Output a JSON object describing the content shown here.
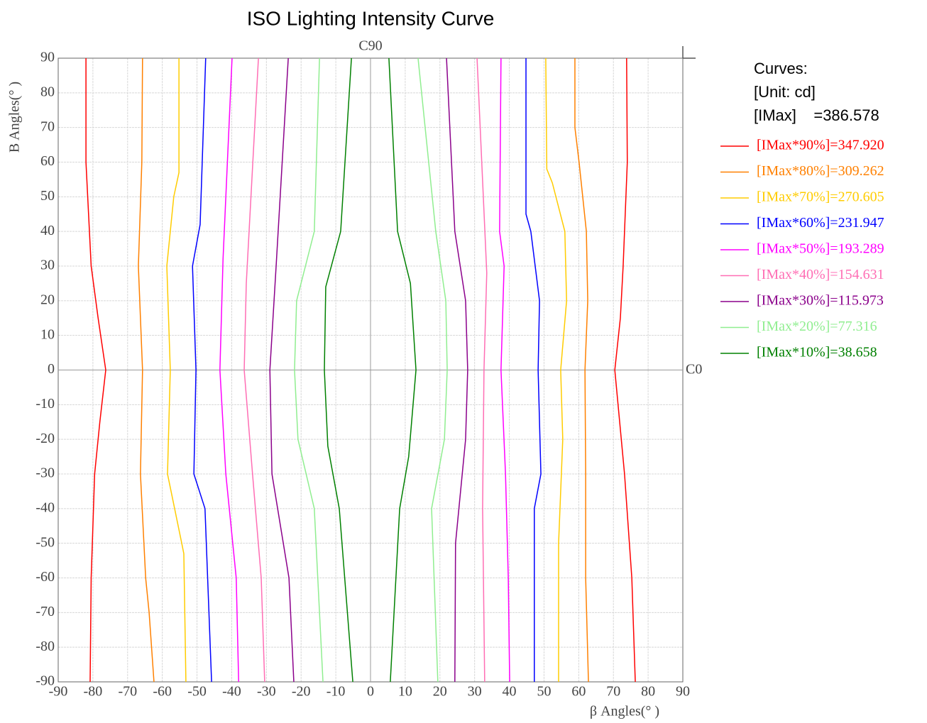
{
  "chart_data": {
    "type": "line",
    "title": "ISO Lighting Intensity Curve",
    "xlabel": "β Angles(° )",
    "ylabel": "B Angles(° )",
    "top_label": "C90",
    "right_label": "C0",
    "legend_title": "Curves:",
    "legend_unit": "[Unit: cd]",
    "legend_max": "[IMax]    =386.578",
    "xlim": [
      -90,
      90
    ],
    "ylim": [
      -90,
      90
    ],
    "xticks": [
      -90,
      -80,
      -70,
      -60,
      -50,
      -40,
      -30,
      -20,
      -10,
      0,
      10,
      20,
      30,
      40,
      50,
      60,
      70,
      80,
      90
    ],
    "yticks": [
      -90,
      -80,
      -70,
      -60,
      -50,
      -40,
      -30,
      -20,
      -10,
      0,
      10,
      20,
      30,
      40,
      50,
      60,
      70,
      80,
      90
    ],
    "grid": true,
    "series": [
      {
        "name": "[IMax*90%]=347.920",
        "color": "#ff0000",
        "x": [
          -82,
          -82,
          -80.5,
          -78.5,
          -76.3,
          -78,
          -79.5,
          -80.5,
          -80.8,
          null,
          73.8,
          74,
          72.8,
          72,
          70.4,
          71.8,
          73.2,
          75.3,
          76.3
        ],
        "y": [
          90,
          60,
          30,
          15,
          0,
          -15,
          -30,
          -60,
          -90,
          null,
          90,
          60,
          30,
          15,
          0,
          -15,
          -30,
          -60,
          -90
        ]
      },
      {
        "name": "[IMax*80%]=309.262",
        "color": "#ff8000",
        "x": [
          -65.7,
          -65.9,
          -66.9,
          -65.7,
          -66.3,
          -64.8,
          -63.8,
          -62.4,
          null,
          58.9,
          58.9,
          60.1,
          62.2,
          62.6,
          61.8,
          62,
          62,
          62.8
        ],
        "y": [
          90,
          60,
          30,
          0,
          -30,
          -60,
          -70,
          -90,
          null,
          90,
          70,
          60,
          40,
          20,
          0,
          -30,
          -60,
          -90
        ]
      },
      {
        "name": "[IMax*70%]=270.605",
        "color": "#ffcc00",
        "x": [
          -55.2,
          -55.2,
          -56.7,
          -58.7,
          -57.7,
          -58.5,
          -54.4,
          -53.8,
          -53.2,
          null,
          50.5,
          50.8,
          52.4,
          56,
          56.5,
          54.8,
          55.4,
          54.2,
          54.2
        ],
        "y": [
          90,
          57,
          50,
          30,
          0,
          -30,
          -50,
          -53,
          -90,
          null,
          90,
          58,
          54,
          40,
          20,
          0,
          -20,
          -50,
          -90
        ]
      },
      {
        "name": "[IMax*60%]=231.947",
        "color": "#0000ff",
        "x": [
          -47.5,
          -49.1,
          -51.3,
          -50.3,
          -50.9,
          -47.7,
          -45.8,
          null,
          44.8,
          44.8,
          46.2,
          48.7,
          48.3,
          49.1,
          47.2,
          47.2
        ],
        "y": [
          90,
          42,
          30,
          0,
          -30,
          -40,
          -90,
          null,
          90,
          45,
          40,
          20,
          0,
          -30,
          -40,
          -90
        ]
      },
      {
        "name": "[IMax*50%]=193.289",
        "color": "#ff00ff",
        "x": [
          -39.9,
          -42.5,
          -43.4,
          -41.7,
          -38.7,
          -38,
          null,
          37.6,
          37.2,
          38.5,
          37.6,
          38.9,
          39.7,
          40.1
        ],
        "y": [
          90,
          32,
          0,
          -30,
          -60,
          -90,
          null,
          90,
          40,
          30,
          0,
          -30,
          -60,
          -90
        ]
      },
      {
        "name": "[IMax*40%]=154.631",
        "color": "#ff6eb4",
        "x": [
          -32.3,
          -35.8,
          -36.4,
          -34,
          -31.5,
          -30.5,
          null,
          30.7,
          33.5,
          32.7,
          32.3,
          32.9
        ],
        "y": [
          90,
          25,
          0,
          -30,
          -60,
          -90,
          null,
          90,
          28,
          0,
          -40,
          -90
        ]
      },
      {
        "name": "[IMax*30%]=115.973",
        "color": "#8b008b",
        "x": [
          -23.7,
          -27.2,
          -29,
          -28.4,
          -23.5,
          -22.1,
          null,
          21.9,
          24.3,
          27.4,
          28,
          27.4,
          24.5,
          24.3
        ],
        "y": [
          90,
          30,
          0,
          -30,
          -60,
          -90,
          null,
          90,
          40,
          20,
          0,
          -20,
          -50,
          -90
        ]
      },
      {
        "name": "[IMax*20%]=77.316",
        "color": "#90ee90",
        "x": [
          -14.7,
          -16.2,
          -21.3,
          -21.9,
          -20.9,
          -16.2,
          -13.7,
          null,
          13.7,
          18.8,
          21.7,
          22.1,
          21.3,
          17.6,
          19.4
        ],
        "y": [
          90,
          40,
          20,
          0,
          -20,
          -40,
          -90,
          null,
          90,
          40,
          20,
          0,
          -20,
          -40,
          -90
        ]
      },
      {
        "name": "[IMax*10%]=38.658",
        "color": "#008000",
        "x": [
          -5.5,
          -8.6,
          -12.9,
          -13.3,
          -12.3,
          -9,
          -5.1,
          null,
          5.3,
          7.8,
          11.5,
          13.1,
          11,
          8.4,
          5.7
        ],
        "y": [
          90,
          40,
          24,
          0,
          -22,
          -40,
          -90,
          null,
          90,
          40,
          25,
          0,
          -25,
          -40,
          -90
        ]
      }
    ]
  }
}
